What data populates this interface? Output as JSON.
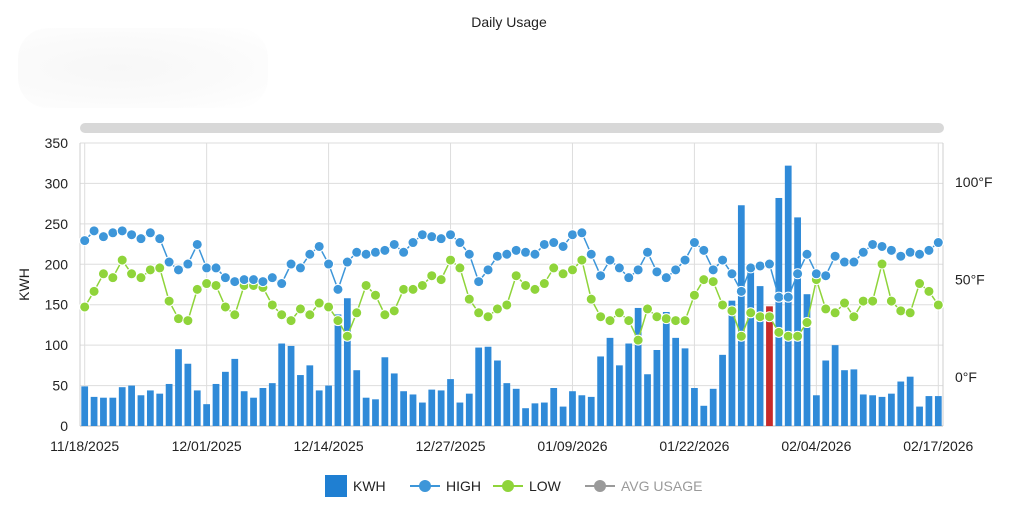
{
  "title": "Daily Usage",
  "legend": {
    "kwh": "KWH",
    "high": "HIGH",
    "low": "LOW",
    "avg": "AVG USAGE"
  },
  "colors": {
    "kwh": "#2f8ad8",
    "kwh_highlight": "#c62a2a",
    "high": "#3d96d9",
    "low": "#8fd43a",
    "avg": "#9a9a9a",
    "grid": "#dddddd",
    "scrollbar": "#d8d8d8"
  },
  "chart_data": {
    "type": "bar",
    "title": "Daily Usage",
    "ylabel": "KWH",
    "ylim": [
      0,
      350
    ],
    "yticks": [
      "0",
      "50",
      "100",
      "150",
      "200",
      "250",
      "300",
      "350"
    ],
    "y2ticks": [
      "0°F",
      "50°F",
      "100°F"
    ],
    "y2lim": [
      -25,
      120
    ],
    "xticks": [
      "11/18/2025",
      "12/01/2025",
      "12/14/2025",
      "12/27/2025",
      "01/09/2026",
      "01/22/2026",
      "02/04/2026",
      "02/17/2026"
    ],
    "start_date": "11/18/2025",
    "highlight_index": 73,
    "series": [
      {
        "name": "KWH",
        "type": "bar",
        "values": [
          49,
          36,
          35,
          35,
          48,
          50,
          38,
          44,
          40,
          52,
          95,
          77,
          44,
          27,
          52,
          67,
          83,
          43,
          35,
          47,
          53,
          102,
          99,
          63,
          75,
          44,
          50,
          138,
          158,
          69,
          35,
          33,
          85,
          65,
          43,
          39,
          29,
          45,
          44,
          58,
          29,
          40,
          97,
          98,
          81,
          53,
          46,
          22,
          28,
          29,
          47,
          24,
          43,
          38,
          36,
          86,
          109,
          75,
          102,
          146,
          64,
          94,
          141,
          109,
          96,
          47,
          25,
          46,
          88,
          155,
          273,
          193,
          173,
          148,
          282,
          322,
          258,
          163,
          38,
          81,
          100,
          69,
          70,
          39,
          38,
          36,
          40,
          55,
          61,
          24,
          37,
          37
        ]
      },
      {
        "name": "HIGH",
        "type": "line",
        "values": [
          70,
          75,
          72,
          74,
          75,
          73,
          71,
          74,
          71,
          59,
          55,
          58,
          68,
          56,
          56,
          51,
          49,
          50,
          50,
          49,
          51,
          48,
          58,
          56,
          63,
          67,
          58,
          45,
          59,
          64,
          63,
          64,
          65,
          68,
          64,
          69,
          73,
          72,
          71,
          73,
          69,
          63,
          49,
          55,
          62,
          63,
          65,
          64,
          63,
          68,
          69,
          67,
          73,
          74,
          63,
          52,
          60,
          56,
          51,
          55,
          64,
          54,
          51,
          55,
          60,
          69,
          65,
          55,
          60,
          53,
          44,
          56,
          57,
          58,
          41,
          41,
          53,
          63,
          53,
          52,
          62,
          59,
          59,
          64,
          68,
          67,
          65,
          62,
          64,
          63,
          65,
          69
        ]
      },
      {
        "name": "LOW",
        "type": "line",
        "values": [
          36,
          44,
          53,
          51,
          60,
          53,
          51,
          55,
          56,
          39,
          30,
          29,
          45,
          48,
          47,
          36,
          32,
          47,
          47,
          46,
          37,
          32,
          29,
          35,
          32,
          38,
          36,
          29,
          21,
          33,
          47,
          42,
          32,
          34,
          45,
          45,
          47,
          52,
          50,
          60,
          56,
          40,
          33,
          31,
          35,
          37,
          52,
          47,
          45,
          48,
          56,
          53,
          55,
          60,
          40,
          31,
          29,
          33,
          29,
          19,
          35,
          31,
          30,
          29,
          29,
          42,
          50,
          49,
          37,
          34,
          21,
          33,
          31,
          31,
          23,
          21,
          21,
          28,
          50,
          35,
          33,
          38,
          31,
          39,
          39,
          58,
          39,
          34,
          33,
          48,
          44,
          37
        ]
      },
      {
        "name": "AVG USAGE",
        "type": "line",
        "values": []
      }
    ]
  }
}
